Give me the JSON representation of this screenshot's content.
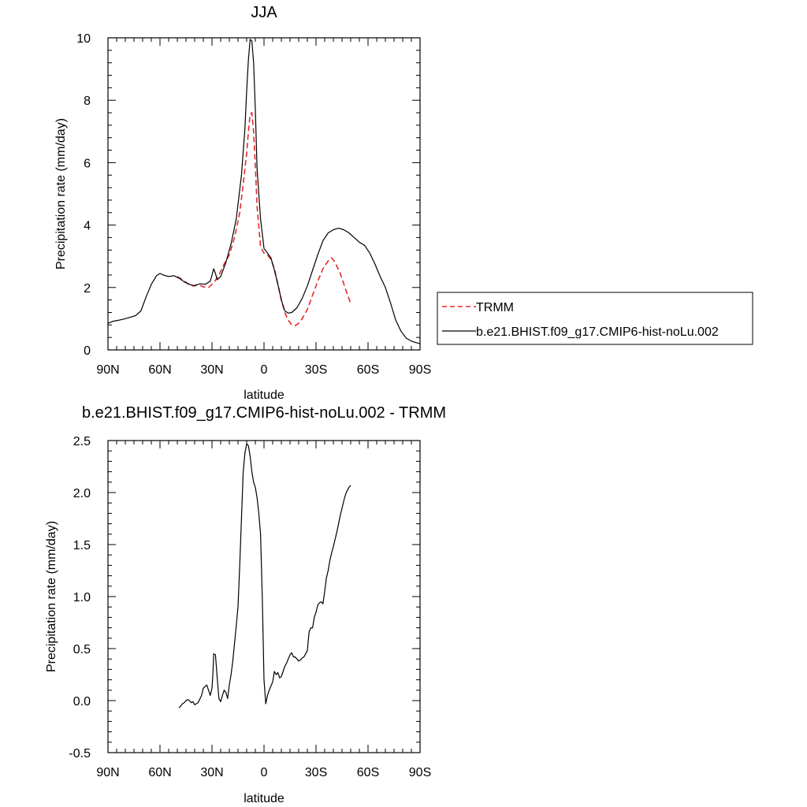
{
  "chart_data": [
    {
      "type": "line",
      "title": "JJA",
      "xlabel": "latitude",
      "ylabel": "Precipitation rate (mm/day)",
      "xlim": [
        90,
        -90
      ],
      "ylim": [
        0,
        10
      ],
      "x_major_ticks": [
        90,
        60,
        30,
        0,
        -30,
        -60,
        -90
      ],
      "x_tick_labels": [
        "90N",
        "60N",
        "30N",
        "0",
        "30S",
        "60S",
        "90S"
      ],
      "y_major_ticks": [
        0,
        2,
        4,
        6,
        8,
        10
      ],
      "y_tick_labels": [
        "0",
        "2",
        "4",
        "6",
        "8",
        "10"
      ],
      "grid": false,
      "legend_position": "right",
      "series": [
        {
          "name": "TRMM",
          "color": "#e8272a",
          "dash": "dashed",
          "x": [
            50,
            47,
            44,
            41,
            38,
            35,
            32,
            29,
            26,
            23,
            20,
            17,
            14,
            12,
            10,
            9,
            8,
            7,
            6,
            5,
            4,
            2,
            0,
            -2,
            -4,
            -6,
            -8,
            -10,
            -12,
            -14,
            -16,
            -18,
            -20,
            -22,
            -25,
            -28,
            -31,
            -34,
            -37,
            -39,
            -41,
            -44,
            -47,
            -50
          ],
          "y": [
            2.35,
            2.25,
            2.12,
            2.05,
            2.1,
            2.02,
            2.0,
            2.15,
            2.4,
            2.75,
            3.05,
            3.6,
            4.4,
            5.3,
            6.3,
            7.0,
            7.55,
            7.6,
            7.0,
            5.9,
            4.6,
            3.3,
            3.1,
            3.05,
            2.9,
            2.6,
            2.1,
            1.6,
            1.2,
            0.95,
            0.8,
            0.78,
            0.85,
            1.0,
            1.3,
            1.75,
            2.2,
            2.6,
            2.85,
            2.95,
            2.8,
            2.45,
            1.95,
            1.48
          ]
        },
        {
          "name": "b.e21.BHIST.f09_g17.CMIP6-hist-noLu.002",
          "color": "#000000",
          "dash": "solid",
          "x": [
            90,
            87,
            84,
            80,
            77,
            74,
            71,
            68,
            65,
            62,
            60,
            58,
            55,
            52,
            49,
            46,
            43,
            40,
            37,
            34,
            31,
            29,
            28,
            27,
            25,
            22,
            19,
            16,
            13,
            11,
            10,
            9,
            8,
            7,
            6,
            5,
            4,
            2,
            0,
            -2,
            -4,
            -6,
            -8,
            -10,
            -12,
            -14,
            -16,
            -19,
            -22,
            -25,
            -28,
            -31,
            -34,
            -37,
            -40,
            -43,
            -46,
            -49,
            -52,
            -55,
            -58,
            -61,
            -64,
            -67,
            -70,
            -73,
            -76,
            -79,
            -82,
            -85,
            -88,
            -90
          ],
          "y": [
            0.85,
            0.92,
            0.95,
            1.0,
            1.05,
            1.1,
            1.25,
            1.7,
            2.1,
            2.38,
            2.45,
            2.4,
            2.35,
            2.38,
            2.3,
            2.18,
            2.1,
            2.05,
            2.12,
            2.1,
            2.2,
            2.6,
            2.45,
            2.25,
            2.35,
            2.8,
            3.4,
            4.2,
            5.6,
            7.1,
            8.3,
            9.3,
            9.95,
            9.9,
            9.2,
            7.7,
            5.8,
            4.2,
            3.25,
            3.1,
            2.95,
            2.55,
            2.1,
            1.6,
            1.25,
            1.18,
            1.2,
            1.35,
            1.65,
            2.05,
            2.55,
            3.05,
            3.5,
            3.75,
            3.85,
            3.9,
            3.85,
            3.75,
            3.6,
            3.45,
            3.35,
            3.1,
            2.75,
            2.35,
            2.0,
            1.5,
            0.95,
            0.6,
            0.38,
            0.28,
            0.23,
            0.2
          ]
        }
      ]
    },
    {
      "type": "line",
      "title": "b.e21.BHIST.f09_g17.CMIP6-hist-noLu.002 - TRMM",
      "xlabel": "latitude",
      "ylabel": "Precipitation rate (mm/day)",
      "xlim": [
        90,
        -90
      ],
      "ylim": [
        -0.5,
        2.5
      ],
      "x_major_ticks": [
        90,
        60,
        30,
        0,
        -30,
        -60,
        -90
      ],
      "x_tick_labels": [
        "90N",
        "60N",
        "30N",
        "0",
        "30S",
        "60S",
        "90S"
      ],
      "y_major_ticks": [
        -0.5,
        0.0,
        0.5,
        1.0,
        1.5,
        2.0,
        2.5
      ],
      "y_tick_labels": [
        "-0.5",
        "0.0",
        "0.5",
        "1.0",
        "1.5",
        "2.0",
        "2.5"
      ],
      "grid": false,
      "series": [
        {
          "color": "#000000",
          "dash": "solid",
          "x": [
            49,
            47,
            46,
            45,
            44,
            43,
            42,
            41,
            40,
            38,
            36,
            35,
            33,
            32,
            31,
            30,
            29.5,
            29,
            28,
            27,
            26,
            25,
            24,
            23,
            22,
            21,
            20,
            19,
            18,
            17,
            16,
            15,
            14,
            13,
            12,
            11,
            10,
            9,
            8,
            7,
            6,
            5,
            4,
            3,
            2,
            1,
            0,
            -1,
            -2,
            -3,
            -4,
            -5,
            -6,
            -7,
            -8,
            -9,
            -10,
            -11,
            -12,
            -13,
            -14,
            -15,
            -16,
            -17,
            -18,
            -19,
            -20,
            -21,
            -22,
            -23,
            -24,
            -25,
            -26,
            -27,
            -28,
            -29,
            -30,
            -31,
            -32,
            -33,
            -34,
            -35,
            -36,
            -37,
            -38,
            -39,
            -40,
            -41,
            -42,
            -43,
            -44,
            -45,
            -46,
            -47,
            -48,
            -49,
            -50
          ],
          "y": [
            -0.07,
            -0.03,
            -0.02,
            0.0,
            0.01,
            0.0,
            -0.02,
            -0.01,
            -0.04,
            -0.02,
            0.05,
            0.12,
            0.15,
            0.1,
            0.05,
            0.12,
            0.25,
            0.45,
            0.44,
            0.22,
            0.02,
            -0.01,
            0.05,
            0.1,
            0.08,
            0.02,
            0.15,
            0.25,
            0.38,
            0.55,
            0.72,
            0.9,
            1.3,
            1.75,
            2.2,
            2.38,
            2.47,
            2.45,
            2.35,
            2.2,
            2.1,
            2.05,
            1.95,
            1.8,
            1.6,
            1.0,
            0.2,
            -0.03,
            0.05,
            0.1,
            0.14,
            0.18,
            0.28,
            0.25,
            0.27,
            0.22,
            0.23,
            0.28,
            0.33,
            0.36,
            0.4,
            0.44,
            0.46,
            0.42,
            0.42,
            0.4,
            0.38,
            0.39,
            0.41,
            0.42,
            0.45,
            0.48,
            0.66,
            0.7,
            0.7,
            0.8,
            0.85,
            0.92,
            0.94,
            0.95,
            0.93,
            1.05,
            1.18,
            1.25,
            1.35,
            1.42,
            1.48,
            1.55,
            1.62,
            1.7,
            1.78,
            1.85,
            1.92,
            1.98,
            2.02,
            2.05,
            2.07
          ]
        }
      ]
    }
  ]
}
